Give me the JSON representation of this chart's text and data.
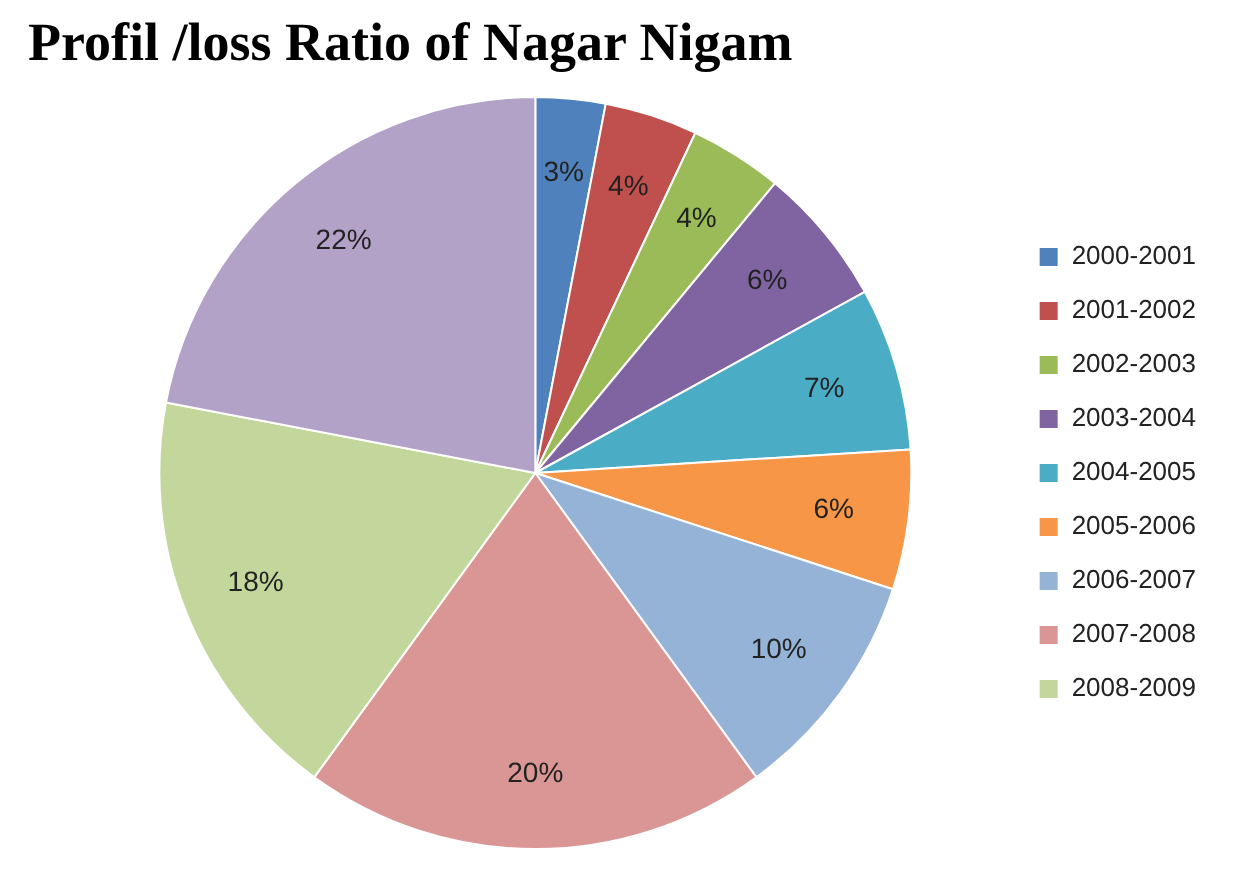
{
  "chart_data": {
    "type": "pie",
    "title": "Profil /loss Ratio of Nagar Nigam",
    "categories": [
      "2000-2001",
      "2001-2002",
      "2002-2003",
      "2003-2004",
      "2004-2005",
      "2005-2006",
      "2006-2007",
      "2007-2008",
      "2008-2009",
      null
    ],
    "values": [
      3,
      4,
      4,
      6,
      7,
      6,
      10,
      20,
      18,
      22
    ],
    "value_labels": [
      "3%",
      "4%",
      "4%",
      "6%",
      "7%",
      "6%",
      "10%",
      "20%",
      "18%",
      "22%"
    ],
    "colors": [
      "#4f81bd",
      "#c0504d",
      "#9bbb59",
      "#8064a2",
      "#4bacc6",
      "#f79646",
      "#95b3d7",
      "#d99694",
      "#c3d69b",
      "#b3a2c7"
    ],
    "legend": "right"
  }
}
